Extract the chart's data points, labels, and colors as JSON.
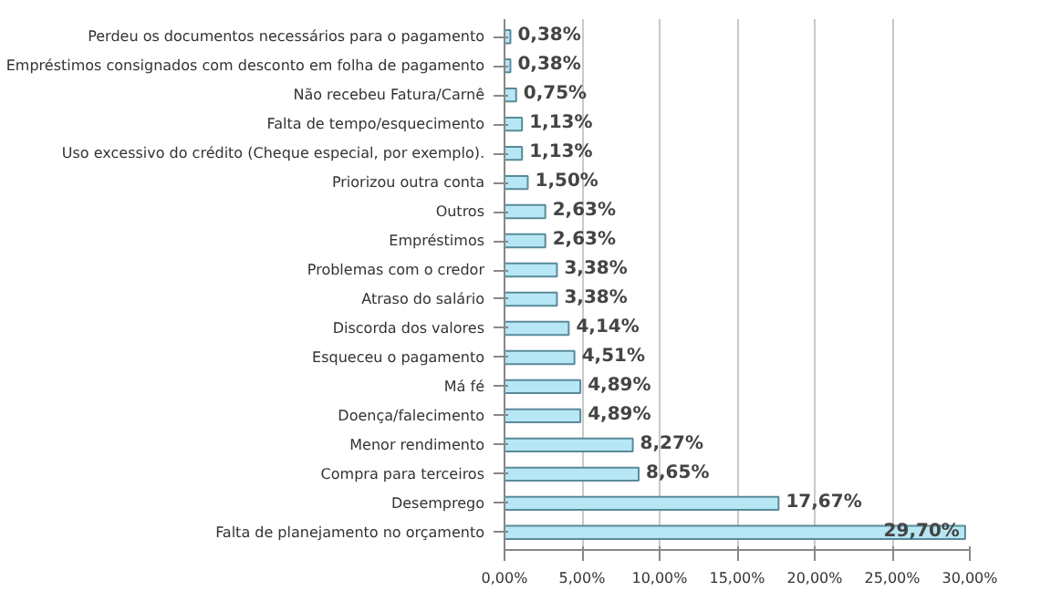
{
  "chart_data": {
    "type": "bar",
    "orientation": "horizontal",
    "categories": [
      "Perdeu os documentos necessários para o pagamento",
      "Empréstimos consignados com desconto em folha de pagamento",
      "Não recebeu Fatura/Carnê",
      "Falta de tempo/esquecimento",
      "Uso excessivo do crédito (Cheque especial, por exemplo).",
      "Priorizou outra conta",
      "Outros",
      "Empréstimos",
      "Problemas com o credor",
      "Atraso do salário",
      "Discorda dos valores",
      "Esqueceu o pagamento",
      "Má fé",
      "Doença/falecimento",
      "Menor rendimento",
      "Compra para terceiros",
      "Desemprego",
      "Falta de planejamento no orçamento"
    ],
    "values": [
      0.38,
      0.38,
      0.75,
      1.13,
      1.13,
      1.5,
      2.63,
      2.63,
      3.38,
      3.38,
      4.14,
      4.51,
      4.89,
      4.89,
      8.27,
      8.65,
      17.67,
      29.7
    ],
    "value_labels": [
      "0,38%",
      "0,38%",
      "0,75%",
      "1,13%",
      "1,13%",
      "1,50%",
      "2,63%",
      "2,63%",
      "3,38%",
      "3,38%",
      "4,14%",
      "4,51%",
      "4,89%",
      "4,89%",
      "8,27%",
      "8,65%",
      "17,67%",
      "29,70%"
    ],
    "color": "#b7e6f4",
    "xlim": [
      0,
      30
    ],
    "xticks": [
      {
        "value": 0,
        "label": "0,00%"
      },
      {
        "value": 5,
        "label": "5,00%"
      },
      {
        "value": 10,
        "label": "10,00%"
      },
      {
        "value": 15,
        "label": "15,00%"
      },
      {
        "value": 20,
        "label": "20,00%"
      },
      {
        "value": 25,
        "label": "25,00%"
      },
      {
        "value": 30,
        "label": "30,00%"
      }
    ],
    "grid": "x"
  }
}
